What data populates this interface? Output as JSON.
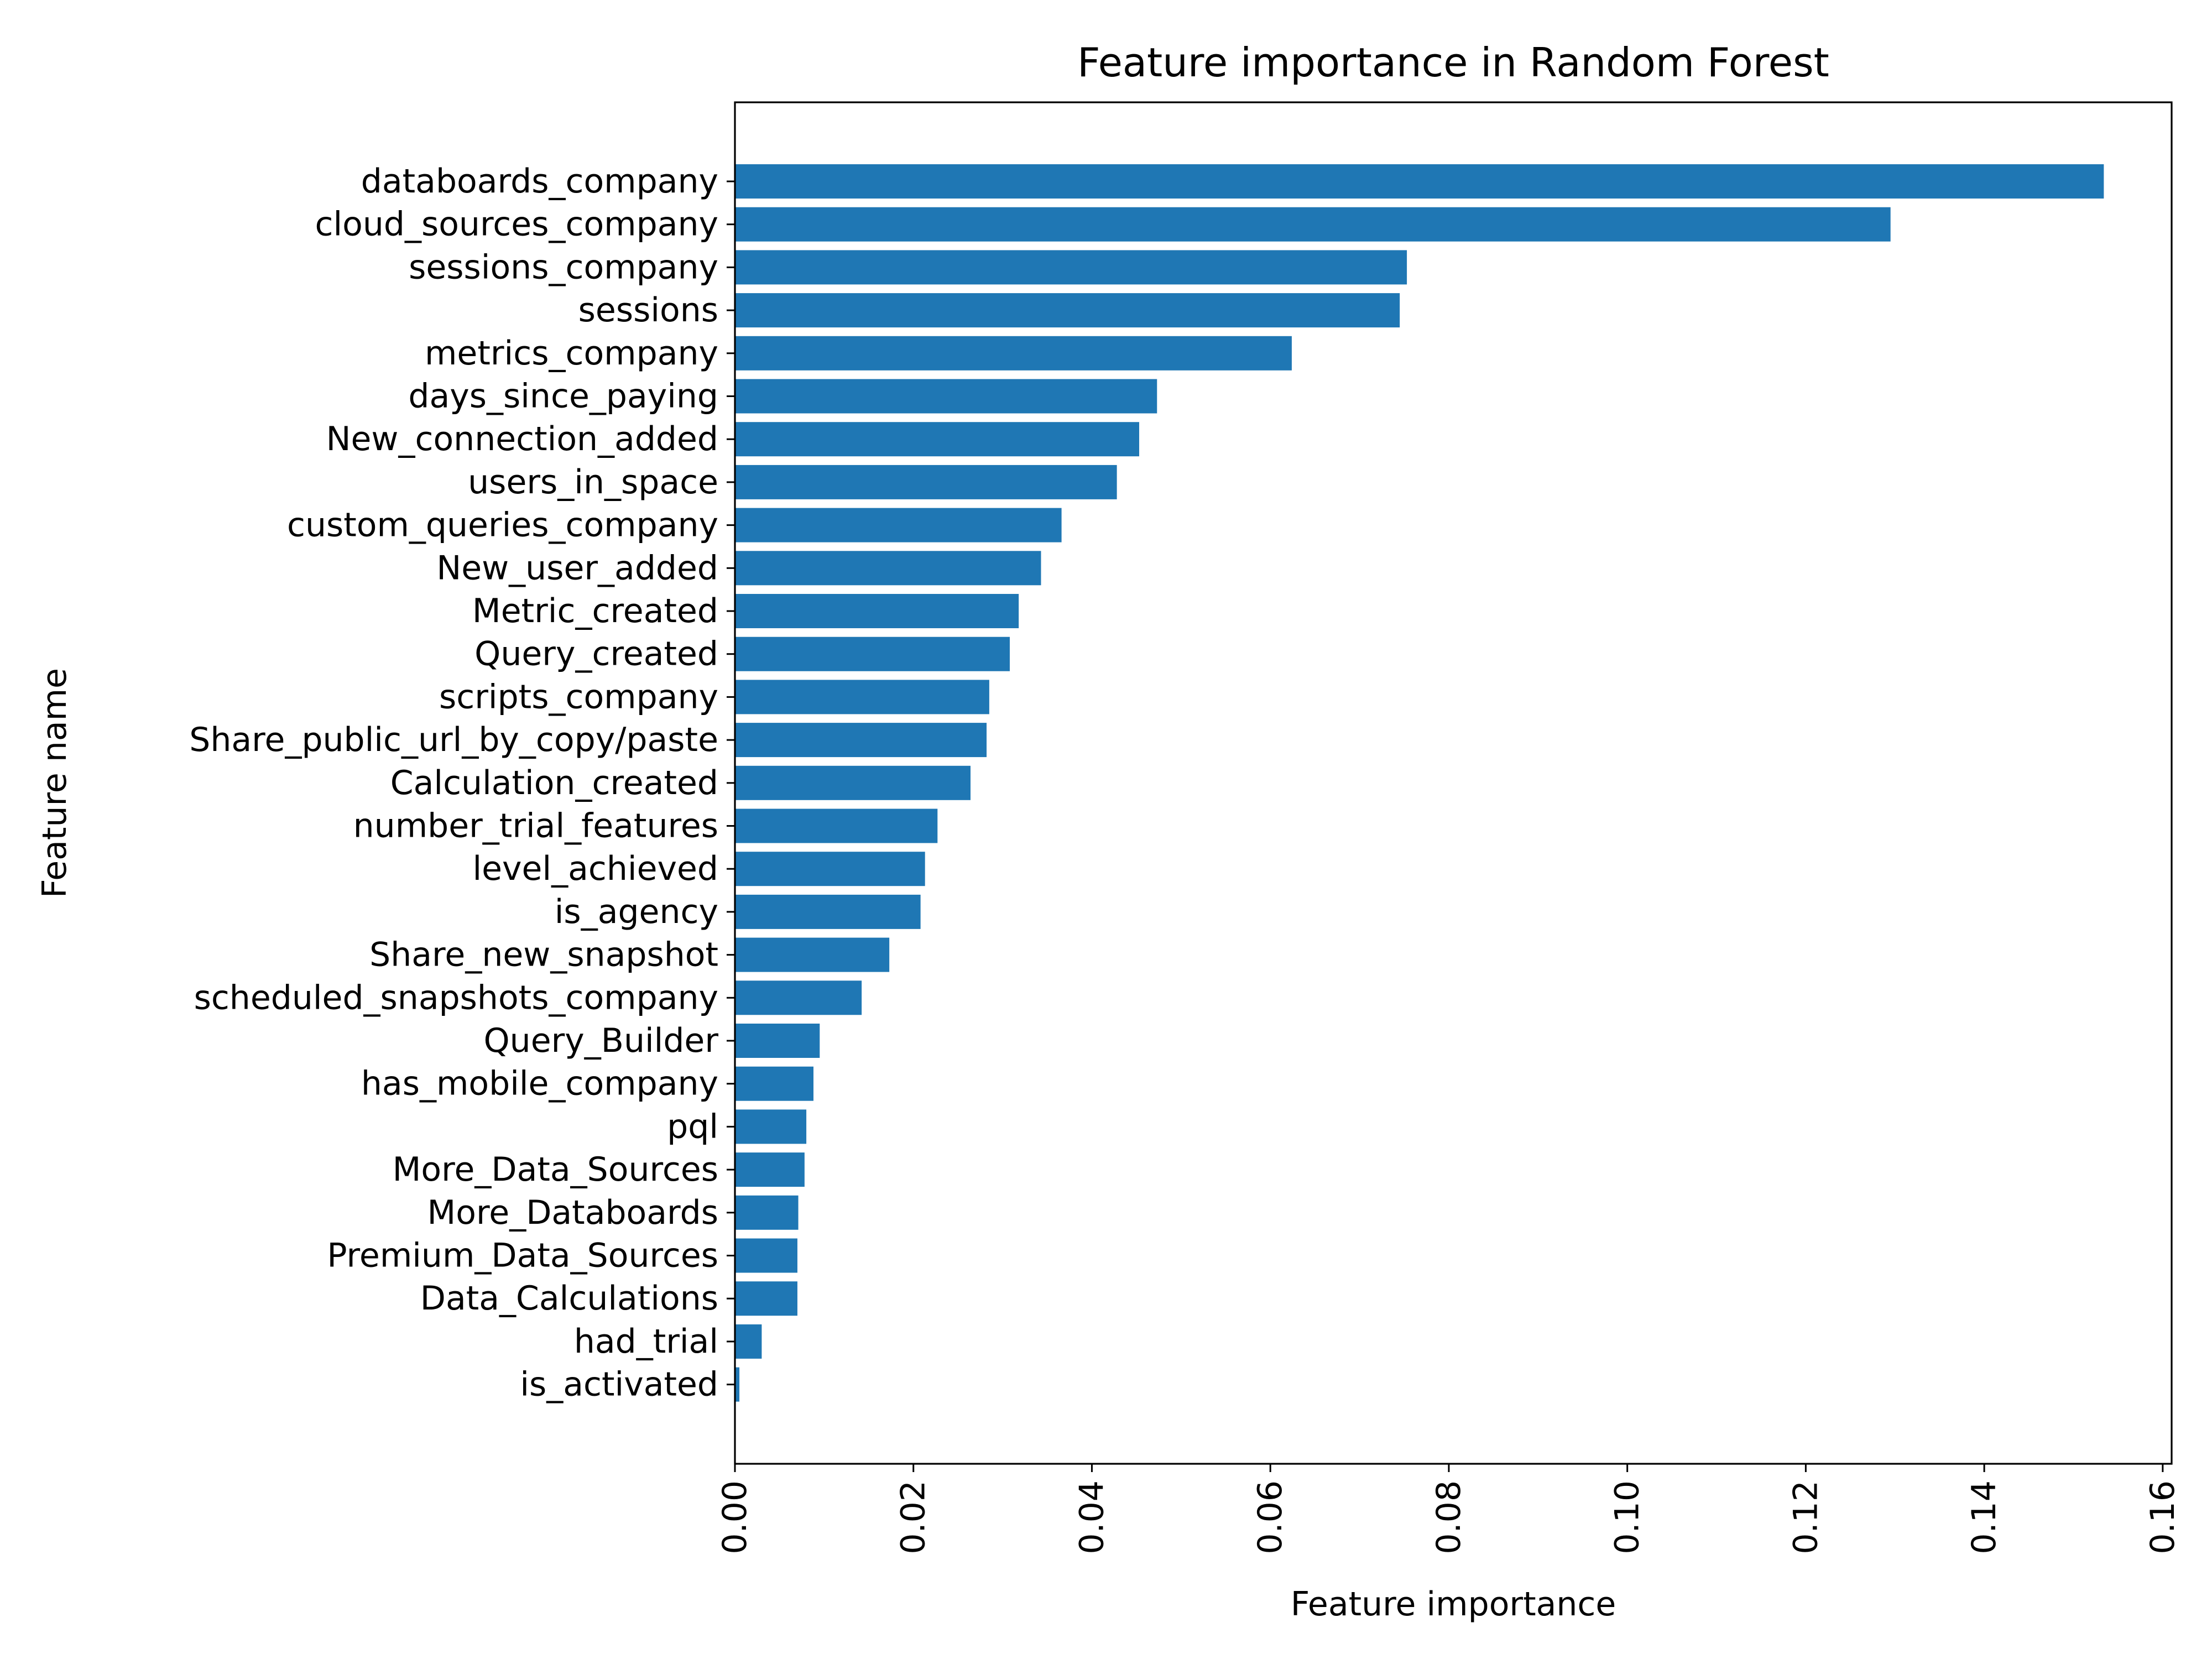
{
  "chart_data": {
    "type": "bar",
    "orientation": "horizontal",
    "title": "Feature importance in Random Forest",
    "xlabel": "Feature importance",
    "ylabel": "Feature name",
    "xlim": [
      0,
      0.161
    ],
    "xticks": [
      "0.00",
      "0.02",
      "0.04",
      "0.06",
      "0.08",
      "0.10",
      "0.12",
      "0.14",
      "0.16"
    ],
    "grid": false,
    "bar_color": "#1f77b4",
    "categories": [
      "databoards_company",
      "cloud_sources_company",
      "sessions_company",
      "sessions",
      "metrics_company",
      "days_since_paying",
      "New_connection_added",
      "users_in_space",
      "custom_queries_company",
      "New_user_added",
      "Metric_created",
      "Query_created",
      "scripts_company",
      "Share_public_url_by_copy/paste",
      "Calculation_created",
      "number_trial_features",
      "level_achieved",
      "is_agency",
      "Share_new_snapshot",
      "scheduled_snapshots_company",
      "Query_Builder",
      "has_mobile_company",
      "pql",
      "More_Data_Sources",
      "More_Databoards",
      "Premium_Data_Sources",
      "Data_Calculations",
      "had_trial",
      "is_activated"
    ],
    "values": [
      0.1534,
      0.1295,
      0.0753,
      0.0745,
      0.0624,
      0.0473,
      0.0453,
      0.0428,
      0.0366,
      0.0343,
      0.0318,
      0.0308,
      0.0285,
      0.0282,
      0.0264,
      0.0227,
      0.0213,
      0.0208,
      0.0173,
      0.0142,
      0.0095,
      0.0088,
      0.008,
      0.0078,
      0.0071,
      0.007,
      0.007,
      0.003,
      0.0005
    ]
  }
}
